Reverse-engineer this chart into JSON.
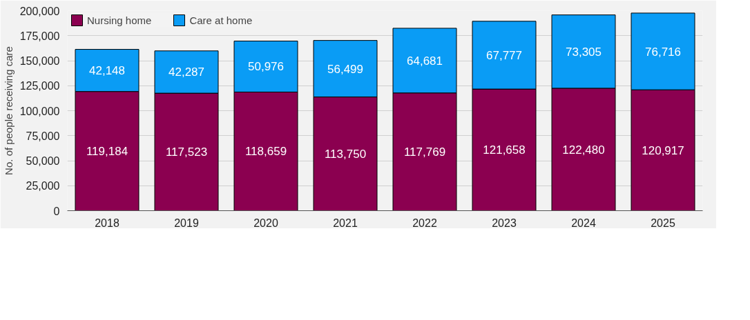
{
  "chart_data": {
    "type": "bar",
    "stacked": true,
    "ylabel": "No. of people receiving care",
    "categories": [
      "2018",
      "2019",
      "2020",
      "2021",
      "2022",
      "2023",
      "2024",
      "2025"
    ],
    "series": [
      {
        "name": "Nursing home",
        "color": "#8b0050",
        "values": [
          119184,
          117523,
          118659,
          113750,
          117769,
          121658,
          122480,
          120917
        ],
        "value_labels": [
          "119,184",
          "117,523",
          "118,659",
          "113,750",
          "117,769",
          "121,658",
          "122,480",
          "120,917"
        ]
      },
      {
        "name": "Care at home",
        "color": "#0a9cf5",
        "values": [
          42148,
          42287,
          50976,
          56499,
          64681,
          67777,
          73305,
          76716
        ],
        "value_labels": [
          "42,148",
          "42,287",
          "50,976",
          "56,499",
          "64,681",
          "67,777",
          "73,305",
          "76,716"
        ]
      }
    ],
    "ylim": [
      0,
      200000
    ],
    "yticks": [
      {
        "value": 0,
        "label": "0"
      },
      {
        "value": 25000,
        "label": "25,000"
      },
      {
        "value": 50000,
        "label": "50,000"
      },
      {
        "value": 75000,
        "label": "75,000"
      },
      {
        "value": 100000,
        "label": "100,000"
      },
      {
        "value": 125000,
        "label": "125,000"
      },
      {
        "value": 150000,
        "label": "150,000"
      },
      {
        "value": 175000,
        "label": "175,000"
      },
      {
        "value": 200000,
        "label": "200,000"
      }
    ],
    "grid": "y",
    "legend": "top left"
  }
}
